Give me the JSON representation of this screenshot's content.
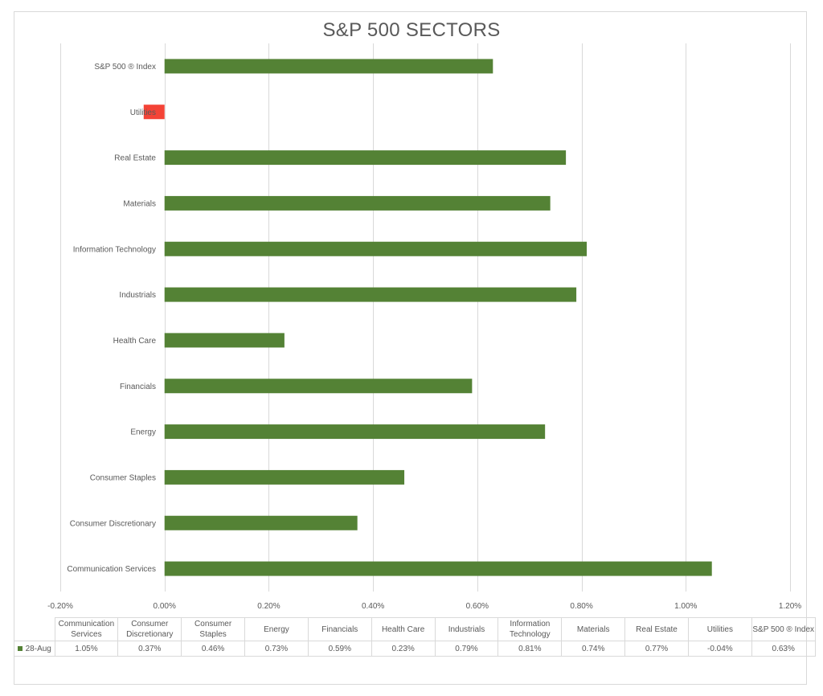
{
  "chart_data": {
    "type": "bar",
    "orientation": "horizontal",
    "title": "S&P 500 SECTORS",
    "categories": [
      "Communication Services",
      "Consumer Discretionary",
      "Consumer Staples",
      "Energy",
      "Financials",
      "Health Care",
      "Industrials",
      "Information Technology",
      "Materials",
      "Real Estate",
      "Utilities",
      "S&P 500 ® Index"
    ],
    "table_headers": [
      [
        "Communication",
        "Services"
      ],
      [
        "Consumer",
        "Discretionary"
      ],
      [
        "Consumer",
        "Staples"
      ],
      [
        "Energy"
      ],
      [
        "Financials"
      ],
      [
        "Health Care"
      ],
      [
        "Industrials"
      ],
      [
        "Information",
        "Technology"
      ],
      [
        "Materials"
      ],
      [
        "Real Estate"
      ],
      [
        "Utilities"
      ],
      [
        "S&P 500 ® Index"
      ]
    ],
    "series": [
      {
        "name": "28-Aug",
        "values": [
          1.05,
          0.37,
          0.46,
          0.73,
          0.59,
          0.23,
          0.79,
          0.81,
          0.74,
          0.77,
          -0.04,
          0.63
        ],
        "labels": [
          "1.05%",
          "0.37%",
          "0.46%",
          "0.73%",
          "0.59%",
          "0.23%",
          "0.79%",
          "0.81%",
          "0.74%",
          "0.77%",
          "-0.04%",
          "0.63%"
        ],
        "color": "#548235",
        "negative_color": "#f44336"
      }
    ],
    "xlim": [
      -0.2,
      1.2
    ],
    "x_ticks": [
      -0.2,
      0,
      0.2,
      0.4,
      0.6,
      0.8,
      1.0,
      1.2
    ],
    "x_tick_labels": [
      "-0.20%",
      "0.00%",
      "0.20%",
      "0.40%",
      "0.60%",
      "0.80%",
      "1.00%",
      "1.20%"
    ],
    "grid": "vertical",
    "data_table": true
  },
  "colors": {
    "gridline": "#d9d9d9",
    "axis_text": "#595959"
  }
}
